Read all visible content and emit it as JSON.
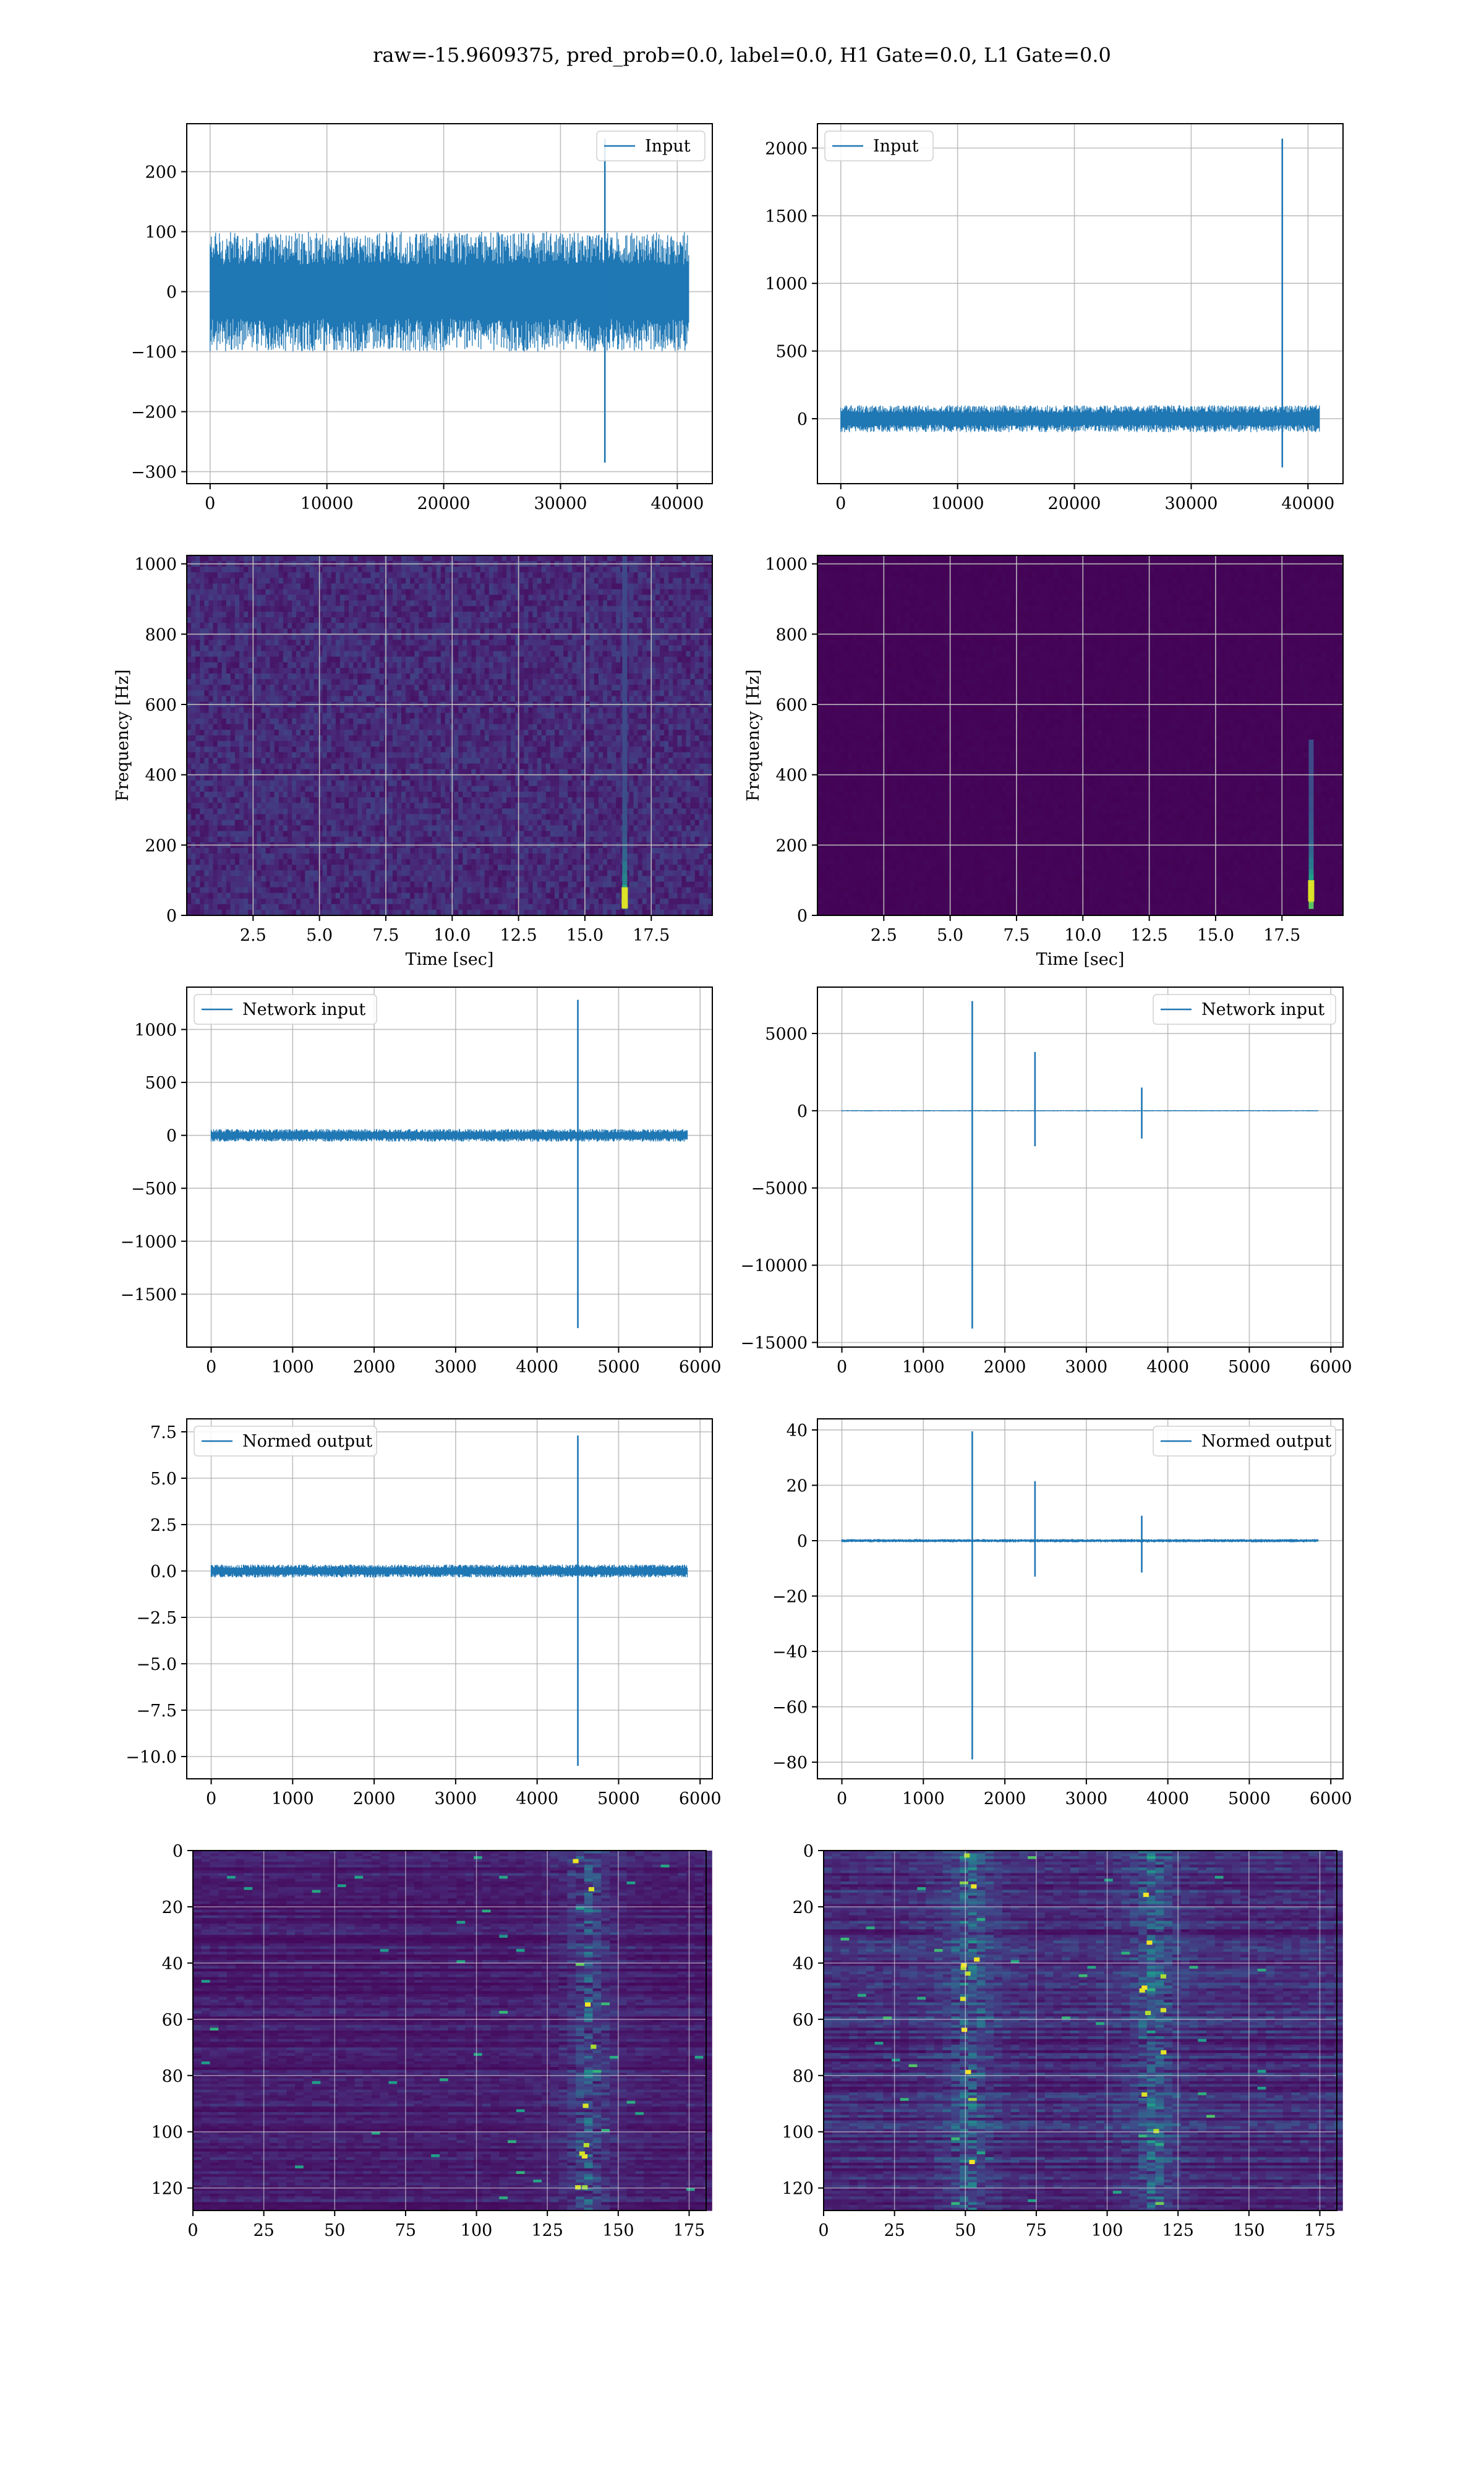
{
  "suptitle": "raw=-15.9609375, pred_prob=0.0, label=0.0, H1 Gate=0.0, L1 Gate=0.0",
  "colors": {
    "line": "#1f77b4",
    "grid": "#b0b0b0",
    "viridis_dark": "#440154",
    "viridis_yellow": "#fde725"
  },
  "chart_data": [
    {
      "id": "input-left",
      "type": "line",
      "grid": true,
      "legend_position": "upper right",
      "series": [
        {
          "name": "Input",
          "color": "#1f77b4"
        }
      ],
      "xlim": [
        -2000,
        43000
      ],
      "ylim": [
        -320,
        280
      ],
      "xticks": [
        0,
        10000,
        20000,
        30000,
        40000
      ],
      "yticks": [
        -300,
        -200,
        -100,
        0,
        100,
        200
      ],
      "ytick_labels": [
        "−300",
        "−200",
        "−100",
        "0",
        "100",
        "200"
      ],
      "samples": 41000,
      "noise_range": [
        -100,
        100
      ],
      "spikes": [
        {
          "x": 33800,
          "max": 255,
          "min": -285
        }
      ]
    },
    {
      "id": "input-right",
      "type": "line",
      "grid": true,
      "legend_position": "upper left",
      "series": [
        {
          "name": "Input",
          "color": "#1f77b4"
        }
      ],
      "xlim": [
        -2000,
        43000
      ],
      "ylim": [
        -480,
        2180
      ],
      "xticks": [
        0,
        10000,
        20000,
        30000,
        40000
      ],
      "yticks": [
        0,
        500,
        1000,
        1500,
        2000
      ],
      "ytick_labels": [
        "0",
        "500",
        "1000",
        "1500",
        "2000"
      ],
      "samples": 41000,
      "noise_range": [
        -100,
        100
      ],
      "spikes": [
        {
          "x": 37800,
          "max": 2070,
          "min": -360
        }
      ]
    },
    {
      "id": "spectrogram-left",
      "type": "heatmap",
      "colormap": "viridis",
      "grid": true,
      "xlabel": "Time [sec]",
      "ylabel": "Frequency [Hz]",
      "xlim": [
        0,
        19.8
      ],
      "ylim": [
        0,
        1024
      ],
      "xticks": [
        2.5,
        5.0,
        7.5,
        10.0,
        12.5,
        15.0,
        17.5
      ],
      "xtick_labels": [
        "2.5",
        "5.0",
        "7.5",
        "10.0",
        "12.5",
        "15.0",
        "17.5"
      ],
      "yticks": [
        0,
        200,
        400,
        600,
        800,
        1000
      ],
      "ytick_labels": [
        "0",
        "200",
        "400",
        "600",
        "800",
        "1000"
      ],
      "background_level": 0.12,
      "features": [
        {
          "time": 16.5,
          "freq_low": 20,
          "freq_high": 1024,
          "peak_freq": 40
        }
      ]
    },
    {
      "id": "spectrogram-right",
      "type": "heatmap",
      "colormap": "viridis",
      "grid": true,
      "xlabel": "Time [sec]",
      "ylabel": "Frequency [Hz]",
      "xlim": [
        0,
        19.8
      ],
      "ylim": [
        0,
        1024
      ],
      "xticks": [
        2.5,
        5.0,
        7.5,
        10.0,
        12.5,
        15.0,
        17.5
      ],
      "xtick_labels": [
        "2.5",
        "5.0",
        "7.5",
        "10.0",
        "12.5",
        "15.0",
        "17.5"
      ],
      "yticks": [
        0,
        200,
        400,
        600,
        800,
        1000
      ],
      "ytick_labels": [
        "0",
        "200",
        "400",
        "600",
        "800",
        "1000"
      ],
      "background_level": 0.01,
      "features": [
        {
          "time": 18.6,
          "freq_low": 20,
          "freq_high": 500,
          "peak_freq": 60
        }
      ]
    },
    {
      "id": "network-input-left",
      "type": "line",
      "grid": true,
      "legend_position": "upper left",
      "series": [
        {
          "name": "Network input",
          "color": "#1f77b4"
        }
      ],
      "xlim": [
        -300,
        6150
      ],
      "ylim": [
        -2000,
        1400
      ],
      "xticks": [
        0,
        1000,
        2000,
        3000,
        4000,
        5000,
        6000
      ],
      "yticks": [
        -1500,
        -1000,
        -500,
        0,
        500,
        1000
      ],
      "ytick_labels": [
        "−1500",
        "−1000",
        "−500",
        "0",
        "500",
        "1000"
      ],
      "samples": 5850,
      "noise_range": [
        -60,
        60
      ],
      "spikes": [
        {
          "x": 4500,
          "max": 1280,
          "min": -1820
        }
      ]
    },
    {
      "id": "network-input-right",
      "type": "line",
      "grid": true,
      "legend_position": "upper right",
      "series": [
        {
          "name": "Network input",
          "color": "#1f77b4"
        }
      ],
      "xlim": [
        -300,
        6150
      ],
      "ylim": [
        -15300,
        8000
      ],
      "xticks": [
        0,
        1000,
        2000,
        3000,
        4000,
        5000,
        6000
      ],
      "yticks": [
        -15000,
        -10000,
        -5000,
        0,
        5000
      ],
      "ytick_labels": [
        "−15000",
        "−10000",
        "−5000",
        "0",
        "5000"
      ],
      "samples": 5850,
      "noise_range": [
        -40,
        40
      ],
      "spikes": [
        {
          "x": 1600,
          "max": 7100,
          "min": -14100
        },
        {
          "x": 2370,
          "max": 3800,
          "min": -2300
        },
        {
          "x": 3680,
          "max": 1500,
          "min": -1800
        }
      ]
    },
    {
      "id": "normed-output-left",
      "type": "line",
      "grid": true,
      "legend_position": "upper left",
      "series": [
        {
          "name": "Normed output",
          "color": "#1f77b4"
        }
      ],
      "xlim": [
        -300,
        6150
      ],
      "ylim": [
        -11.2,
        8.2
      ],
      "xticks": [
        0,
        1000,
        2000,
        3000,
        4000,
        5000,
        6000
      ],
      "yticks": [
        -10.0,
        -7.5,
        -5.0,
        -2.5,
        0.0,
        2.5,
        5.0,
        7.5
      ],
      "ytick_labels": [
        "−10.0",
        "−7.5",
        "−5.0",
        "−2.5",
        "0.0",
        "2.5",
        "5.0",
        "7.5"
      ],
      "samples": 5850,
      "noise_range": [
        -0.35,
        0.35
      ],
      "spikes": [
        {
          "x": 4500,
          "max": 7.3,
          "min": -10.5
        }
      ]
    },
    {
      "id": "normed-output-right",
      "type": "line",
      "grid": true,
      "legend_position": "upper right",
      "series": [
        {
          "name": "Normed output",
          "color": "#1f77b4"
        }
      ],
      "xlim": [
        -300,
        6150
      ],
      "ylim": [
        -86,
        44
      ],
      "xticks": [
        0,
        1000,
        2000,
        3000,
        4000,
        5000,
        6000
      ],
      "yticks": [
        -80,
        -60,
        -40,
        -20,
        0,
        20,
        40
      ],
      "ytick_labels": [
        "−80",
        "−60",
        "−40",
        "−20",
        "0",
        "20",
        "40"
      ],
      "samples": 5850,
      "noise_range": [
        -0.6,
        0.6
      ],
      "spikes": [
        {
          "x": 1600,
          "max": 39.5,
          "min": -79
        },
        {
          "x": 2370,
          "max": 21.5,
          "min": -13
        },
        {
          "x": 3680,
          "max": 9,
          "min": -11.5
        }
      ]
    },
    {
      "id": "feature-map-left",
      "type": "heatmap",
      "colormap": "viridis",
      "grid": true,
      "xlim": [
        0,
        181
      ],
      "ylim": [
        128,
        0
      ],
      "xticks": [
        0,
        25,
        50,
        75,
        100,
        125,
        150,
        175
      ],
      "xtick_labels": [
        "0",
        "25",
        "50",
        "75",
        "100",
        "125",
        "150",
        "175"
      ],
      "yticks": [
        0,
        20,
        40,
        60,
        80,
        100,
        120
      ],
      "ytick_labels": [
        "0",
        "20",
        "40",
        "60",
        "80",
        "100",
        "120"
      ],
      "background_level": 0.08,
      "bands": [
        {
          "x_from": 110,
          "x_to": 160,
          "center": 138,
          "level": 0.35
        }
      ]
    },
    {
      "id": "feature-map-right",
      "type": "heatmap",
      "colormap": "viridis",
      "grid": true,
      "xlim": [
        0,
        181
      ],
      "ylim": [
        128,
        0
      ],
      "xticks": [
        0,
        25,
        50,
        75,
        100,
        125,
        150,
        175
      ],
      "xtick_labels": [
        "0",
        "25",
        "50",
        "75",
        "100",
        "125",
        "150",
        "175"
      ],
      "yticks": [
        0,
        20,
        40,
        60,
        80,
        100,
        120
      ],
      "ytick_labels": [
        "0",
        "20",
        "40",
        "60",
        "80",
        "100",
        "120"
      ],
      "background_level": 0.12,
      "bands": [
        {
          "x_from": 30,
          "x_to": 70,
          "center": 50,
          "level": 0.4
        },
        {
          "x_from": 95,
          "x_to": 135,
          "center": 115,
          "level": 0.4
        }
      ]
    }
  ]
}
